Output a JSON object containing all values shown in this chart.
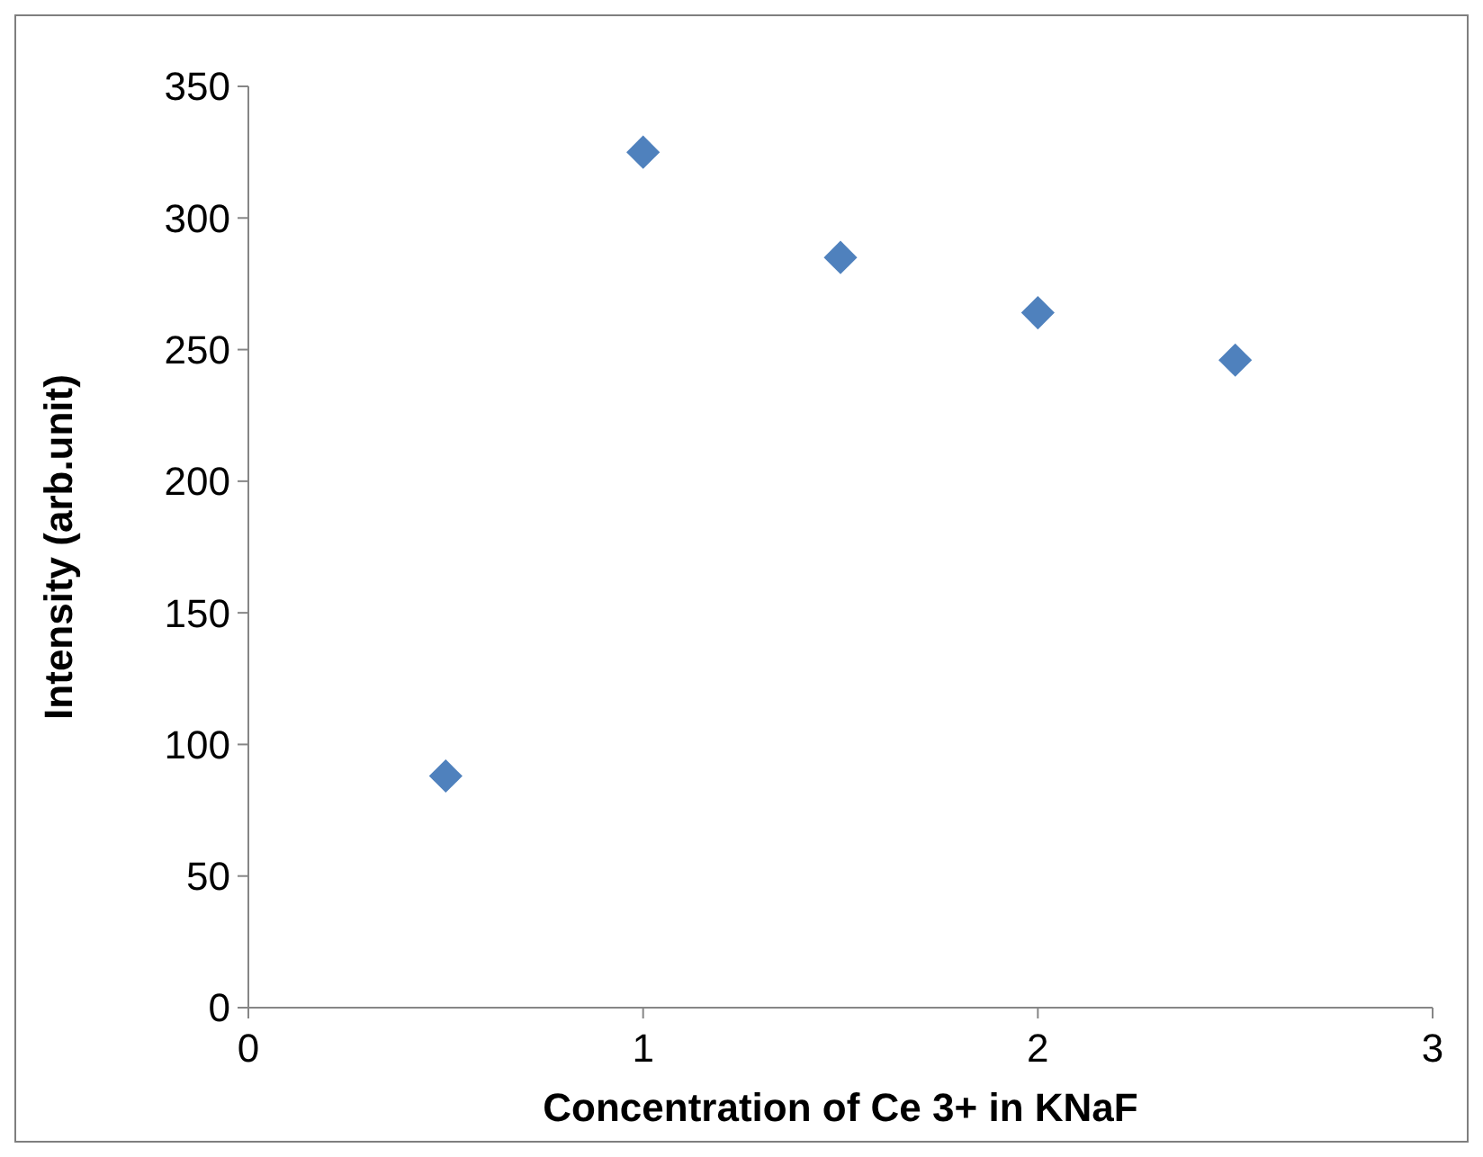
{
  "chart_data": {
    "type": "scatter",
    "xlabel": "Concentration of Ce 3+ in KNaF",
    "ylabel": "Intensity (arb.unit)",
    "x": [
      0.5,
      1,
      1.5,
      2,
      2.5
    ],
    "series": [
      {
        "color": "#4f81bd",
        "values": [
          88,
          325,
          285,
          264,
          246
        ]
      }
    ],
    "xlim": [
      0,
      3
    ],
    "xticks": [
      0,
      1,
      2,
      3
    ],
    "ylim": [
      0,
      350
    ],
    "yticks": [
      0,
      50,
      100,
      150,
      200,
      250,
      300,
      350
    ],
    "grid": false,
    "marker": "diamond"
  }
}
